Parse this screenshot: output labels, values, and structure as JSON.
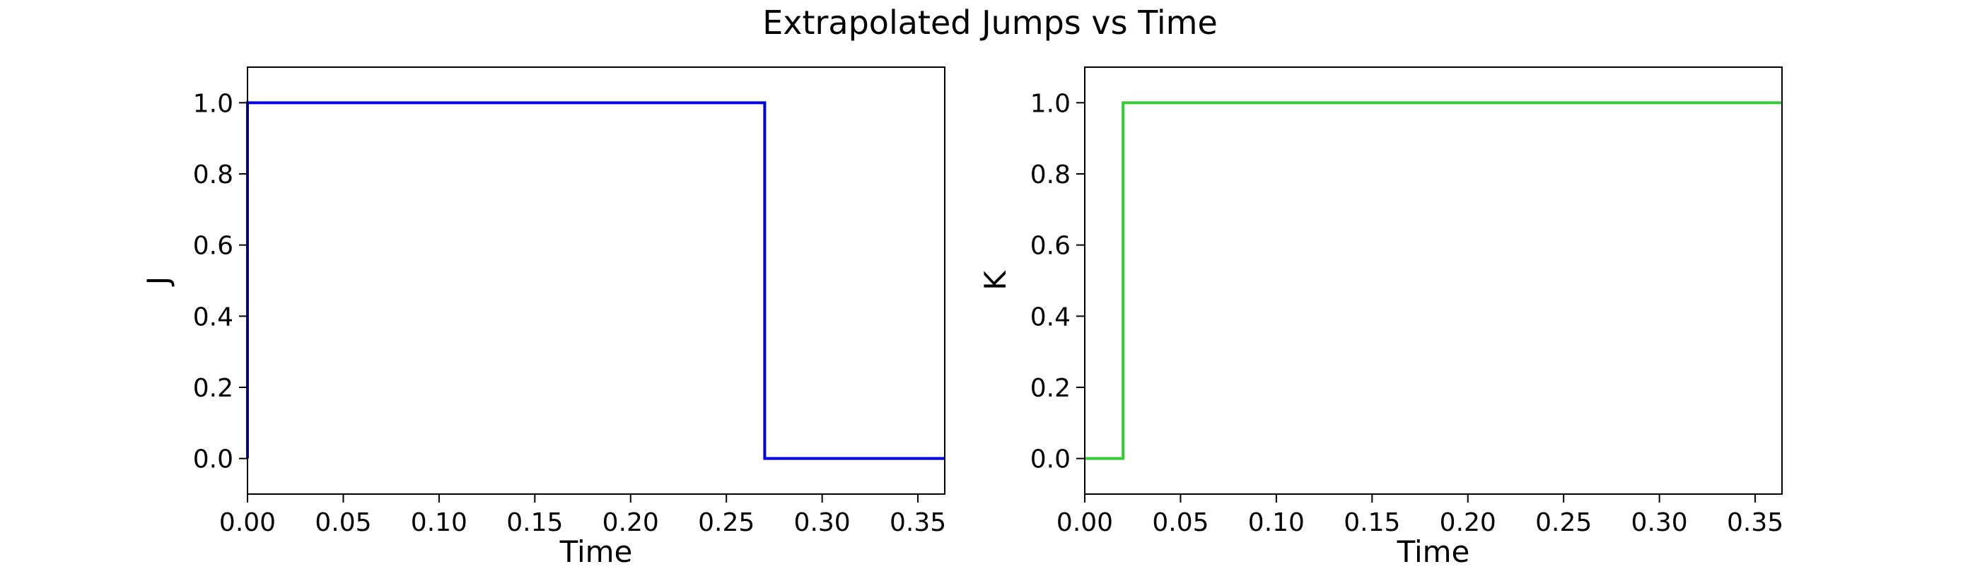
{
  "figure": {
    "title": "Extrapolated Jumps vs Time"
  },
  "chart_data": [
    {
      "type": "line",
      "step": true,
      "xlabel": "Time",
      "ylabel": "J",
      "xlim": [
        0.0,
        0.364
      ],
      "ylim": [
        -0.1,
        1.1
      ],
      "xticks": [
        0.0,
        0.05,
        0.1,
        0.15,
        0.2,
        0.25,
        0.3,
        0.35
      ],
      "xtick_labels": [
        "0.00",
        "0.05",
        "0.10",
        "0.15",
        "0.20",
        "0.25",
        "0.30",
        "0.35"
      ],
      "yticks": [
        0.0,
        0.2,
        0.4,
        0.6,
        0.8,
        1.0
      ],
      "ytick_labels": [
        "0.0",
        "0.2",
        "0.4",
        "0.6",
        "0.8",
        "1.0"
      ],
      "color": "#0000ee",
      "series": [
        {
          "x": [
            0.0,
            0.0,
            0.27,
            0.27,
            0.364
          ],
          "y": [
            0.0,
            1.0,
            1.0,
            0.0,
            0.0
          ]
        }
      ],
      "grid": false
    },
    {
      "type": "line",
      "step": true,
      "xlabel": "Time",
      "ylabel": "K",
      "xlim": [
        0.0,
        0.364
      ],
      "ylim": [
        -0.1,
        1.1
      ],
      "xticks": [
        0.0,
        0.05,
        0.1,
        0.15,
        0.2,
        0.25,
        0.3,
        0.35
      ],
      "xtick_labels": [
        "0.00",
        "0.05",
        "0.10",
        "0.15",
        "0.20",
        "0.25",
        "0.30",
        "0.35"
      ],
      "yticks": [
        0.0,
        0.2,
        0.4,
        0.6,
        0.8,
        1.0
      ],
      "ytick_labels": [
        "0.0",
        "0.2",
        "0.4",
        "0.6",
        "0.8",
        "1.0"
      ],
      "color": "#33cc33",
      "series": [
        {
          "x": [
            0.0,
            0.02,
            0.02,
            0.364
          ],
          "y": [
            0.0,
            0.0,
            1.0,
            1.0
          ]
        }
      ],
      "grid": false
    }
  ]
}
